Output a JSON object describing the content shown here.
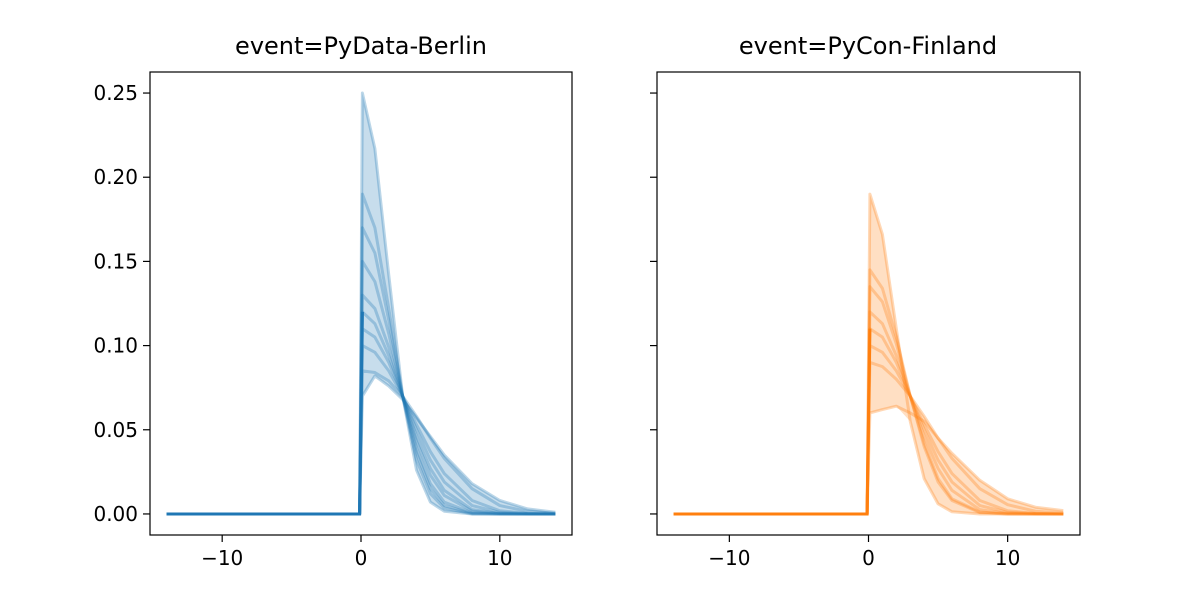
{
  "chart_data": [
    {
      "type": "line",
      "title": "event=PyData-Berlin",
      "color": "#1f77b4",
      "xlim": [
        -15.2,
        15.2
      ],
      "ylim": [
        -0.0125,
        0.2625
      ],
      "xticks": [
        -10,
        0,
        10
      ],
      "xtick_labels": [
        "−10",
        "0",
        "10"
      ],
      "yticks": [
        0,
        0.05,
        0.1,
        0.15,
        0.2,
        0.25
      ],
      "ytick_labels": [
        "0.00",
        "0.05",
        "0.10",
        "0.15",
        "0.20",
        "0.25"
      ],
      "x": [
        -14,
        -0.1,
        0.1,
        1,
        2,
        3,
        4,
        5,
        6,
        8,
        10,
        12,
        14
      ],
      "series": [
        {
          "values": [
            0,
            0,
            0.25,
            0.217,
            0.142,
            0.07,
            0.026,
            0.007,
            0.0016,
            0,
            0,
            0,
            0
          ]
        },
        {
          "values": [
            0,
            0,
            0.19,
            0.17,
            0.122,
            0.07,
            0.032,
            0.012,
            0.0035,
            0,
            0,
            0,
            0
          ]
        },
        {
          "values": [
            0,
            0,
            0.17,
            0.155,
            0.115,
            0.07,
            0.036,
            0.015,
            0.005,
            0.0003,
            0,
            0,
            0
          ]
        },
        {
          "values": [
            0,
            0,
            0.15,
            0.138,
            0.107,
            0.07,
            0.039,
            0.018,
            0.007,
            0.0007,
            0,
            0,
            0
          ]
        },
        {
          "values": [
            0,
            0,
            0.13,
            0.122,
            0.099,
            0.07,
            0.043,
            0.023,
            0.011,
            0.0017,
            0.0002,
            0,
            0
          ]
        },
        {
          "values": [
            0,
            0,
            0.12,
            0.113,
            0.094,
            0.07,
            0.046,
            0.027,
            0.014,
            0.0026,
            0.0003,
            0,
            0
          ]
        },
        {
          "values": [
            0,
            0,
            0.11,
            0.105,
            0.09,
            0.07,
            0.05,
            0.032,
            0.019,
            0.005,
            0.001,
            0.0002,
            0
          ]
        },
        {
          "values": [
            0,
            0,
            0.1,
            0.096,
            0.085,
            0.07,
            0.053,
            0.037,
            0.024,
            0.008,
            0.0019,
            0.0003,
            0
          ]
        },
        {
          "values": [
            0,
            0,
            0.085,
            0.084,
            0.079,
            0.07,
            0.058,
            0.045,
            0.033,
            0.015,
            0.005,
            0.0015,
            0.0005
          ]
        },
        {
          "values": [
            0,
            0,
            0.07,
            0.082,
            0.076,
            0.068,
            0.057,
            0.046,
            0.035,
            0.018,
            0.008,
            0.003,
            0.001
          ]
        }
      ]
    },
    {
      "type": "line",
      "title": "event=PyCon-Finland",
      "color": "#ff7f0e",
      "xlim": [
        -15.2,
        15.2
      ],
      "ylim": [
        -0.0125,
        0.2625
      ],
      "xticks": [
        -10,
        0,
        10
      ],
      "xtick_labels": [
        "−10",
        "0",
        "10"
      ],
      "yticks": [
        0,
        0.05,
        0.1,
        0.15,
        0.2,
        0.25
      ],
      "ytick_labels": [
        "",
        "",
        "",
        "",
        "",
        ""
      ],
      "x": [
        -14,
        -0.1,
        0.1,
        1,
        2,
        3,
        4,
        5,
        6,
        8,
        10,
        12,
        14
      ],
      "series": [
        {
          "values": [
            0,
            0,
            0.19,
            0.166,
            0.11,
            0.055,
            0.021,
            0.006,
            0.0013,
            0,
            0,
            0,
            0
          ]
        },
        {
          "values": [
            0,
            0,
            0.145,
            0.134,
            0.105,
            0.07,
            0.04,
            0.019,
            0.008,
            0.0008,
            0,
            0,
            0
          ]
        },
        {
          "values": [
            0,
            0,
            0.135,
            0.126,
            0.101,
            0.07,
            0.042,
            0.021,
            0.009,
            0.0012,
            0,
            0,
            0
          ]
        },
        {
          "values": [
            0,
            0,
            0.12,
            0.113,
            0.094,
            0.07,
            0.046,
            0.027,
            0.014,
            0.0026,
            0.0003,
            0,
            0
          ]
        },
        {
          "values": [
            0,
            0,
            0.11,
            0.105,
            0.09,
            0.07,
            0.05,
            0.032,
            0.019,
            0.005,
            0.001,
            0.0002,
            0
          ]
        },
        {
          "values": [
            0,
            0,
            0.1,
            0.096,
            0.085,
            0.07,
            0.053,
            0.037,
            0.024,
            0.008,
            0.0019,
            0.0003,
            0
          ]
        },
        {
          "values": [
            0,
            0,
            0.09,
            0.0875,
            0.08,
            0.07,
            0.058,
            0.045,
            0.033,
            0.015,
            0.0055,
            0.0016,
            0.0004
          ]
        },
        {
          "values": [
            0,
            0,
            0.06,
            0.062,
            0.064,
            0.06,
            0.055,
            0.045,
            0.036,
            0.02,
            0.009,
            0.004,
            0.002
          ]
        }
      ]
    }
  ]
}
